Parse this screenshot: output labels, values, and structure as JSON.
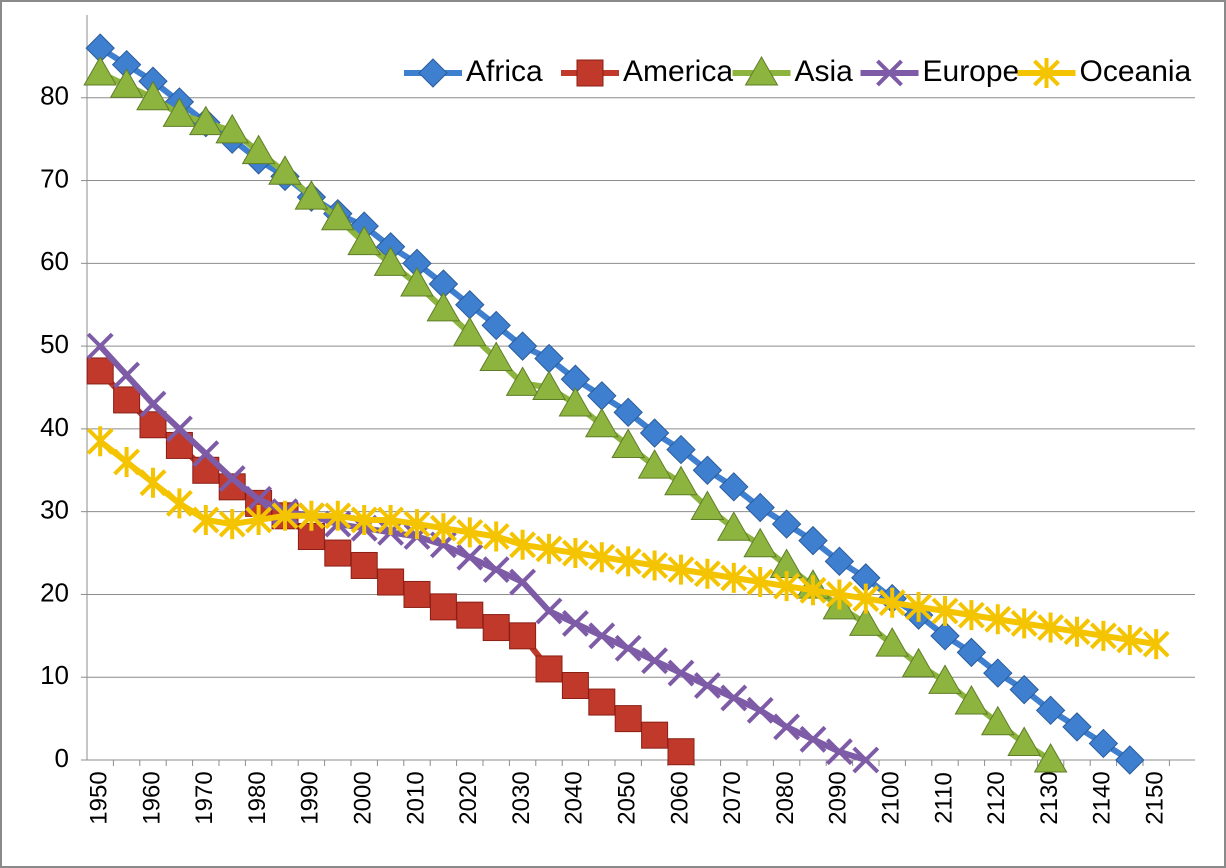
{
  "chart_data": {
    "type": "line",
    "categories": [
      "1950",
      null,
      "1960",
      null,
      "1970",
      null,
      "1980",
      null,
      "1990",
      null,
      "2000",
      null,
      "2010",
      null,
      "2020",
      null,
      "2030",
      null,
      "2040",
      null,
      "2050",
      null,
      "2060",
      null,
      "2070",
      null,
      "2080",
      null,
      "2090",
      null,
      "2100",
      null,
      "2110",
      null,
      "2120",
      null,
      "2130",
      null,
      "2140",
      null,
      "2150"
    ],
    "series": [
      {
        "name": "Africa",
        "color": "#3f7fd0",
        "marker": "diamond",
        "values": [
          86,
          84,
          82,
          79.5,
          77,
          75,
          72.5,
          70.5,
          68,
          66,
          64.5,
          62,
          60,
          57.5,
          55,
          52.5,
          50,
          48.5,
          46,
          44,
          42,
          39.5,
          37.5,
          35,
          33,
          30.5,
          28.5,
          26.5,
          24,
          22,
          19.5,
          17.5,
          15,
          13,
          10.5,
          8.5,
          6,
          4,
          2,
          0,
          null
        ]
      },
      {
        "name": "America",
        "color": "#c0392b",
        "marker": "square",
        "values": [
          47,
          43.5,
          40.5,
          38,
          35,
          33,
          31,
          29.5,
          27,
          25,
          23.5,
          21.5,
          20,
          18.5,
          17.5,
          16,
          15,
          11,
          9,
          7,
          5,
          3,
          1,
          null,
          null,
          null,
          null,
          null,
          null,
          null,
          null,
          null,
          null,
          null,
          null,
          null,
          null,
          null,
          null,
          null,
          null
        ]
      },
      {
        "name": "Asia",
        "color": "#8db43e",
        "marker": "triangle",
        "values": [
          83,
          81.5,
          80,
          78,
          77,
          76,
          73.5,
          71,
          68,
          65.5,
          62.5,
          60,
          57.5,
          54.5,
          51.5,
          48.5,
          45.5,
          45,
          43,
          40.5,
          38,
          35.5,
          33.5,
          30.5,
          28,
          26,
          23.5,
          21,
          18.5,
          16.5,
          14,
          11.5,
          9.5,
          7,
          4.5,
          2,
          0,
          null,
          null,
          null,
          null
        ]
      },
      {
        "name": "Europe",
        "color": "#7e5ba6",
        "marker": "x",
        "values": [
          50,
          46.5,
          43,
          40,
          37,
          34,
          31.5,
          30,
          29.5,
          28.5,
          28,
          27.5,
          27,
          26,
          24.5,
          23,
          21.5,
          18,
          16.5,
          15,
          13.5,
          12,
          10.5,
          9,
          7.5,
          6,
          4,
          2.5,
          1,
          0,
          null,
          null,
          null,
          null,
          null,
          null,
          null,
          null,
          null,
          null,
          null
        ]
      },
      {
        "name": "Oceania",
        "color": "#f5c400",
        "marker": "star",
        "values": [
          38.5,
          36,
          33.5,
          31,
          29,
          28.5,
          29,
          29.5,
          29.5,
          29.5,
          29,
          29,
          28.5,
          28,
          27.5,
          27,
          26,
          25.5,
          25,
          24.5,
          24,
          23.5,
          23,
          22.5,
          22,
          21.5,
          21,
          20.5,
          20,
          19.5,
          19,
          18.5,
          18,
          17.5,
          17,
          16.5,
          16,
          15.5,
          15,
          14.5,
          14
        ]
      }
    ],
    "ylim": [
      0,
      90
    ],
    "yticks": [
      0,
      10,
      20,
      30,
      40,
      50,
      60,
      70,
      80
    ],
    "grid": true,
    "legend": "top-right"
  }
}
